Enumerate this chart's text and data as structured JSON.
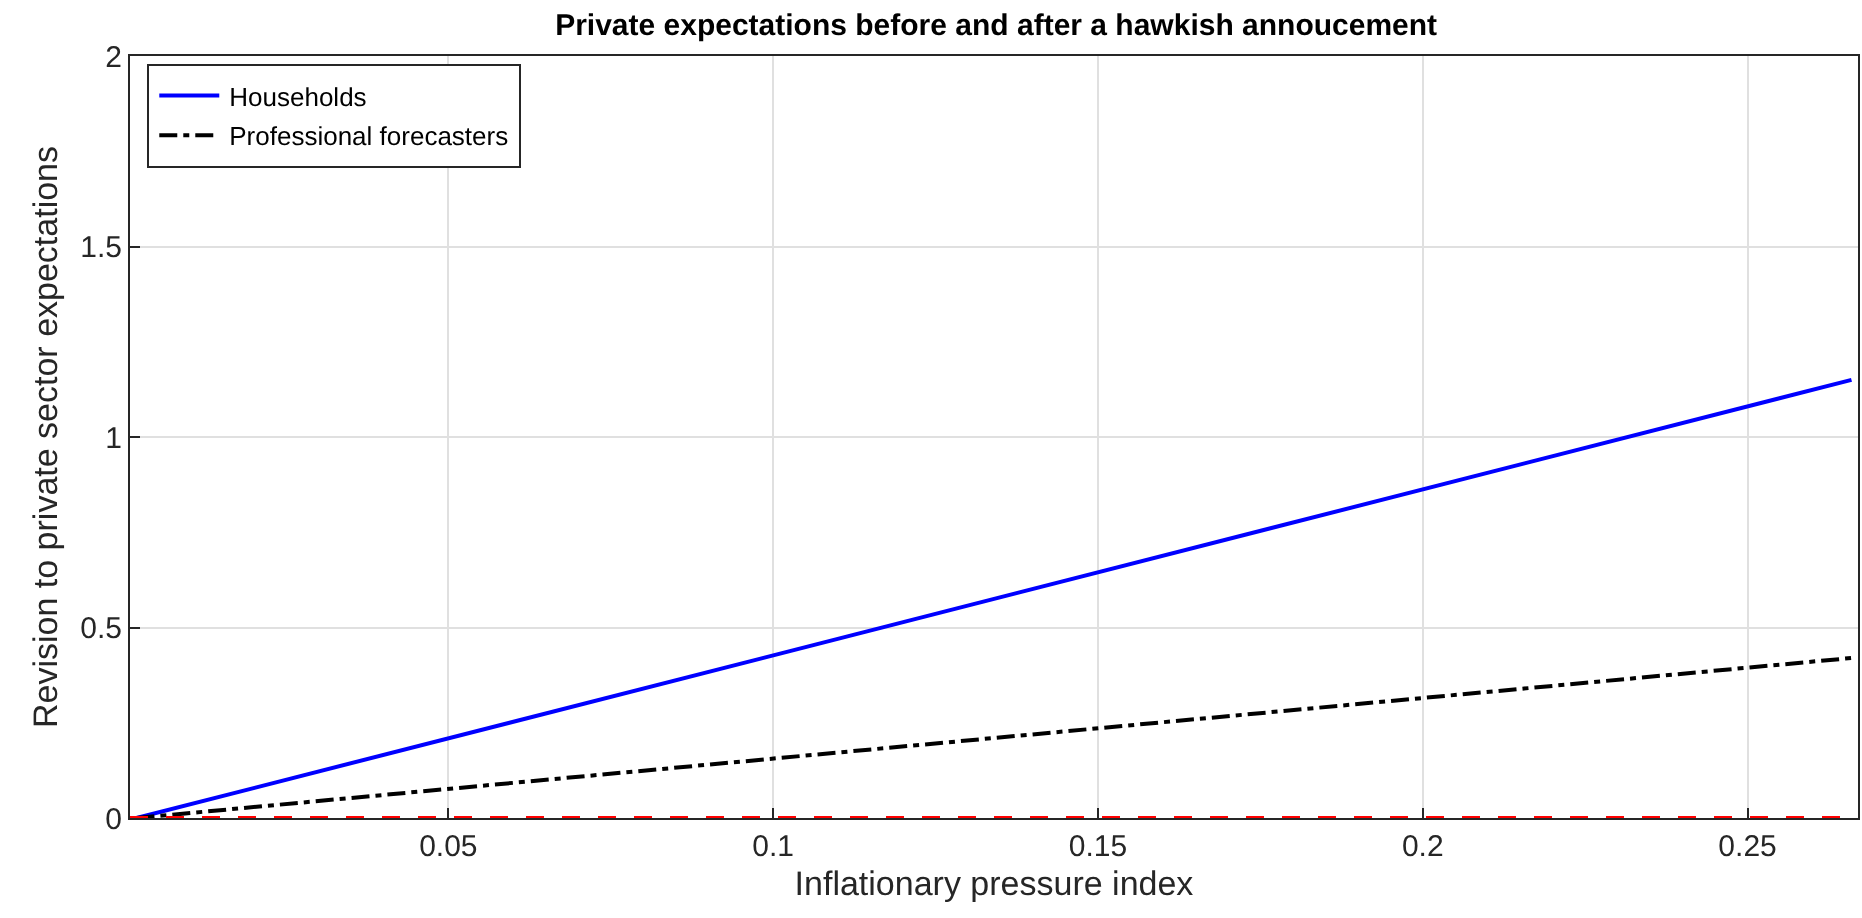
{
  "chart_data": {
    "type": "line",
    "title": "Private expectations before and after a hawkish annoucement",
    "xlabel": "Inflationary pressure index",
    "ylabel": "Revision to private sector expectations",
    "x": [
      0.002,
      0.266
    ],
    "series": [
      {
        "name": "Households",
        "color": "#0000ff",
        "values": [
          0,
          1.15
        ],
        "line_style": "solid"
      },
      {
        "name": "Professional forecasters",
        "color": "#000000",
        "values": [
          0,
          0.42
        ],
        "line_style": "dashdot"
      }
    ],
    "ref_lines": [
      {
        "axis": "y",
        "value": 0,
        "label": null,
        "color": "#ff0000",
        "line_style": "dashed"
      }
    ],
    "xlim": [
      0.001,
      0.267
    ],
    "xticks": [
      0.05,
      0.1,
      0.15,
      0.2,
      0.25
    ],
    "ylim": [
      0,
      2
    ],
    "yticks": [
      0,
      0.5,
      1,
      1.5,
      2
    ],
    "grid": true,
    "legend": "top left",
    "marker": "none"
  }
}
